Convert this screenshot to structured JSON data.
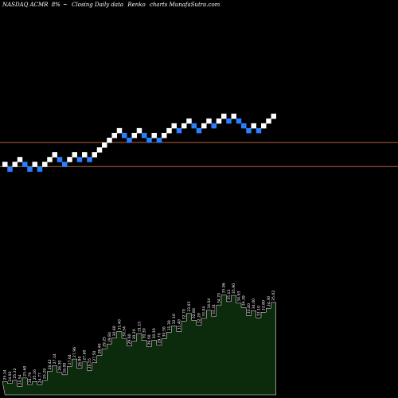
{
  "header": {
    "symbol": "NASDAQ ACMR",
    "change": "8%",
    "arrow": "~",
    "chart_kind": "Closing Daily data",
    "chart_style": "Renko",
    "source": "charts MunafaSutra.com"
  },
  "colors": {
    "background": "#000000",
    "up_brick": "#ffffff",
    "down_brick": "#2a7fff",
    "line": "#b4643c",
    "volume_fill": "#0c2a0c",
    "volume_line": "#ffffff",
    "text": "#ffffff"
  },
  "chart_data": [
    {
      "type": "renko",
      "brick_size": 1,
      "bricks": [
        {
          "level": 0,
          "dir": "up"
        },
        {
          "level": -1,
          "dir": "down"
        },
        {
          "level": 0,
          "dir": "up"
        },
        {
          "level": 1,
          "dir": "up"
        },
        {
          "level": 0,
          "dir": "down"
        },
        {
          "level": -1,
          "dir": "down"
        },
        {
          "level": 0,
          "dir": "up"
        },
        {
          "level": -1,
          "dir": "down"
        },
        {
          "level": 0,
          "dir": "up"
        },
        {
          "level": 1,
          "dir": "up"
        },
        {
          "level": 2,
          "dir": "up"
        },
        {
          "level": 1,
          "dir": "down"
        },
        {
          "level": 0,
          "dir": "down"
        },
        {
          "level": 1,
          "dir": "up"
        },
        {
          "level": 2,
          "dir": "up"
        },
        {
          "level": 1,
          "dir": "down"
        },
        {
          "level": 2,
          "dir": "up"
        },
        {
          "level": 1,
          "dir": "down"
        },
        {
          "level": 2,
          "dir": "up"
        },
        {
          "level": 3,
          "dir": "up"
        },
        {
          "level": 4,
          "dir": "up"
        },
        {
          "level": 5,
          "dir": "up"
        },
        {
          "level": 6,
          "dir": "up"
        },
        {
          "level": 7,
          "dir": "up"
        },
        {
          "level": 6,
          "dir": "down"
        },
        {
          "level": 5,
          "dir": "down"
        },
        {
          "level": 6,
          "dir": "up"
        },
        {
          "level": 7,
          "dir": "up"
        },
        {
          "level": 6,
          "dir": "down"
        },
        {
          "level": 5,
          "dir": "down"
        },
        {
          "level": 6,
          "dir": "up"
        },
        {
          "level": 5,
          "dir": "down"
        },
        {
          "level": 6,
          "dir": "up"
        },
        {
          "level": 7,
          "dir": "up"
        },
        {
          "level": 8,
          "dir": "up"
        },
        {
          "level": 7,
          "dir": "down"
        },
        {
          "level": 8,
          "dir": "up"
        },
        {
          "level": 9,
          "dir": "up"
        },
        {
          "level": 8,
          "dir": "down"
        },
        {
          "level": 7,
          "dir": "down"
        },
        {
          "level": 8,
          "dir": "up"
        },
        {
          "level": 9,
          "dir": "up"
        },
        {
          "level": 8,
          "dir": "down"
        },
        {
          "level": 9,
          "dir": "up"
        },
        {
          "level": 10,
          "dir": "up"
        },
        {
          "level": 9,
          "dir": "down"
        },
        {
          "level": 10,
          "dir": "up"
        },
        {
          "level": 9,
          "dir": "down"
        },
        {
          "level": 8,
          "dir": "down"
        },
        {
          "level": 7,
          "dir": "down"
        },
        {
          "level": 8,
          "dir": "up"
        },
        {
          "level": 7,
          "dir": "down"
        },
        {
          "level": 8,
          "dir": "up"
        },
        {
          "level": 9,
          "dir": "up"
        },
        {
          "level": 10,
          "dir": "up"
        }
      ],
      "reference_lines": [
        6,
        1
      ]
    },
    {
      "type": "area",
      "name": "closing-labels",
      "values": [
        25.14,
        24.93,
        25.32,
        24.54,
        25.6,
        24.79,
        25.16,
        24.77,
        25.29,
        26.42,
        27.14,
        26.3,
        26.0,
        27.04,
        27.96,
        26.8,
        27.6,
        26.55,
        27.5,
        28.4,
        29.25,
        29.84,
        30.6,
        31.4,
        30.54,
        29.6,
        30.2,
        31.15,
        30.3,
        29.5,
        30.3,
        29.7,
        30.5,
        31.3,
        32.1,
        31.4,
        32.7,
        33.65,
        32.8,
        32.2,
        33.04,
        34.04,
        33.31,
        34.7,
        35.96,
        35.13,
        35.9,
        34.93,
        34.39,
        33.4,
        34.0,
        33.1,
        33.8,
        34.3,
        35.02
      ],
      "ylim": [
        23.5,
        37.0
      ]
    }
  ]
}
